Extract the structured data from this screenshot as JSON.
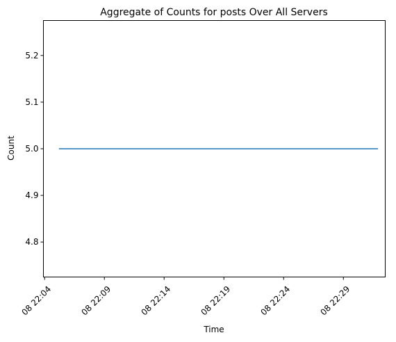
{
  "chart_data": {
    "type": "line",
    "title": "Aggregate of Counts for posts Over All Servers",
    "xlabel": "Time",
    "ylabel": "Count",
    "x_ticks": [
      "08 22:04",
      "08 22:09",
      "08 22:14",
      "08 22:19",
      "08 22:24",
      "08 22:29"
    ],
    "x_tick_minutes": [
      4,
      9,
      14,
      19,
      24,
      29
    ],
    "y_ticks": [
      4.8,
      4.9,
      5.0,
      5.1,
      5.2
    ],
    "y_tick_labels": [
      "4.8",
      "4.9",
      "5.0",
      "5.1",
      "5.2"
    ],
    "xlim_minutes": [
      3.9,
      32.5
    ],
    "ylim": [
      4.725,
      5.275
    ],
    "grid": false,
    "series": [
      {
        "color": "#1f77b4",
        "x_minutes": [
          5.2,
          31.9
        ],
        "values": [
          5.0,
          5.0
        ]
      }
    ]
  }
}
